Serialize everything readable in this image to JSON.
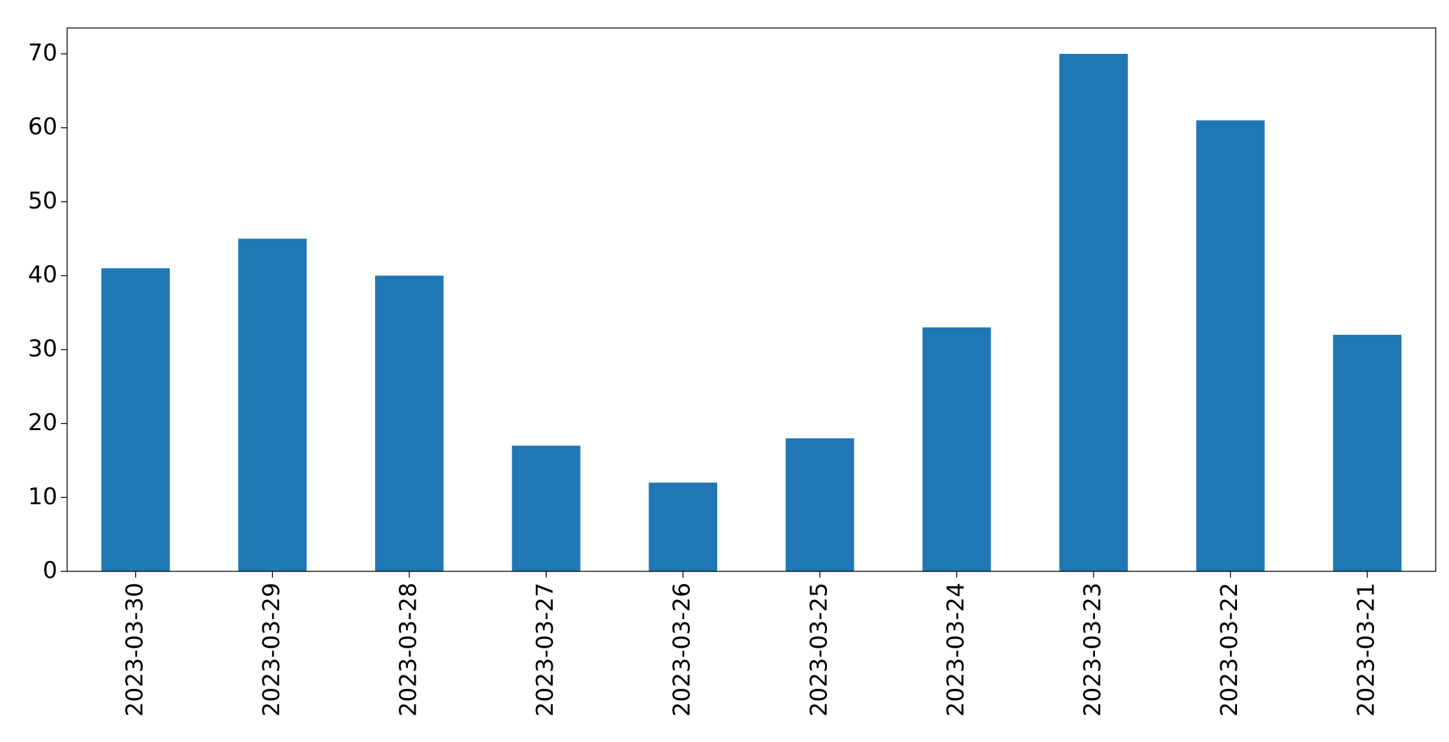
{
  "chart_data": {
    "type": "bar",
    "categories": [
      "2023-03-30",
      "2023-03-29",
      "2023-03-28",
      "2023-03-27",
      "2023-03-26",
      "2023-03-25",
      "2023-03-24",
      "2023-03-23",
      "2023-03-22",
      "2023-03-21"
    ],
    "values": [
      41,
      45,
      40,
      17,
      12,
      18,
      33,
      70,
      61,
      32
    ],
    "color": "#1f77b4",
    "ylim": [
      0,
      73.5
    ],
    "yticks": [
      0,
      10,
      20,
      30,
      40,
      50,
      60,
      70
    ],
    "grid": false
  }
}
